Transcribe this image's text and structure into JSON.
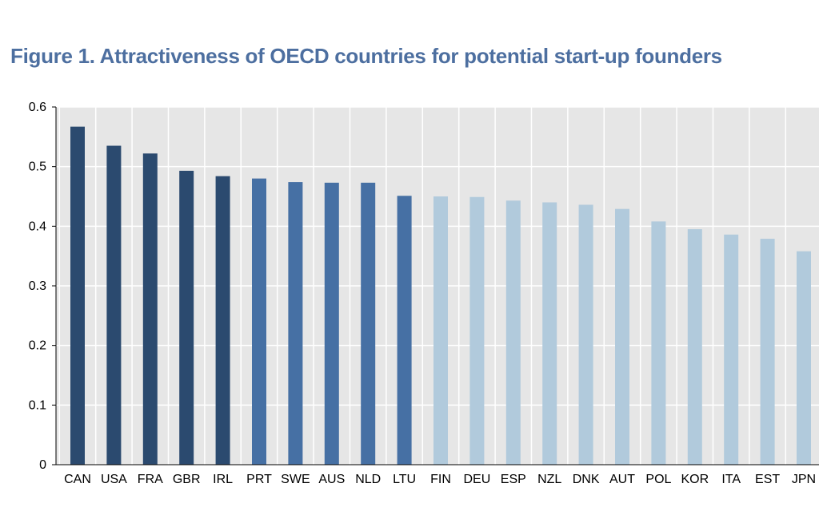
{
  "chart_data": {
    "type": "bar",
    "title": "Figure 1. Attractiveness of OECD countries for potential start-up founders",
    "xlabel": "",
    "ylabel": "",
    "ylim": [
      0,
      0.6
    ],
    "yticks": [
      "0",
      "0.1",
      "0.2",
      "0.3",
      "0.4",
      "0.5",
      "0.6"
    ],
    "grid": true,
    "legend": "none",
    "categories": [
      "CAN",
      "USA",
      "FRA",
      "GBR",
      "IRL",
      "PRT",
      "SWE",
      "AUS",
      "NLD",
      "LTU",
      "FIN",
      "DEU",
      "ESP",
      "NZL",
      "DNK",
      "AUT",
      "POL",
      "KOR",
      "ITA",
      "EST",
      "JPN"
    ],
    "values": [
      0.567,
      0.535,
      0.522,
      0.493,
      0.484,
      0.48,
      0.474,
      0.473,
      0.473,
      0.451,
      0.45,
      0.449,
      0.443,
      0.44,
      0.436,
      0.429,
      0.408,
      0.395,
      0.386,
      0.379,
      0.358
    ],
    "bar_colors": [
      "#2b4a6f",
      "#2b4a6f",
      "#2b4a6f",
      "#2b4a6f",
      "#2b4a6f",
      "#4670a4",
      "#4670a4",
      "#4670a4",
      "#4670a4",
      "#4670a4",
      "#b1cadc",
      "#b1cadc",
      "#b1cadc",
      "#b1cadc",
      "#b1cadc",
      "#b1cadc",
      "#b1cadc",
      "#b1cadc",
      "#b1cadc",
      "#b1cadc",
      "#b1cadc"
    ],
    "plot_background": "#e6e6e6",
    "gridline_color": "#ffffff"
  }
}
